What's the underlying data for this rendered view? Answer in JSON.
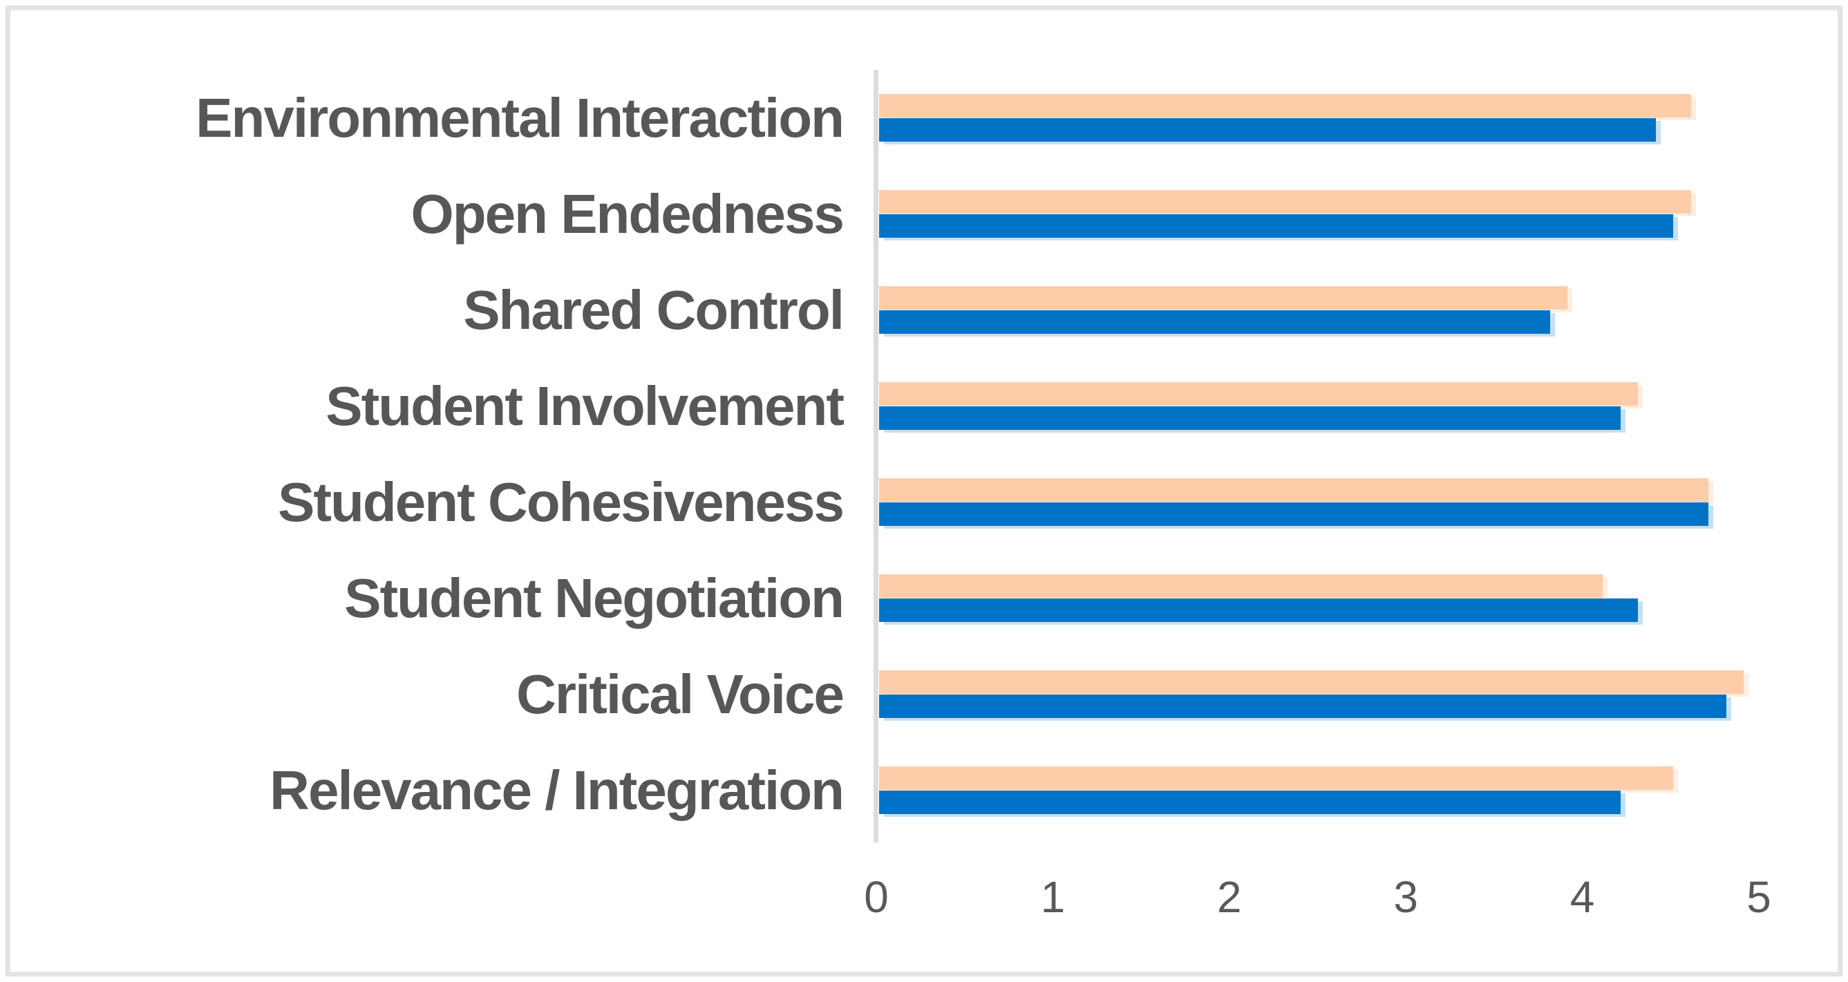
{
  "chart_data": {
    "type": "bar",
    "orientation": "horizontal",
    "title": "",
    "xlabel": "",
    "ylabel": "",
    "categories": [
      "Environmental Interaction",
      "Open Endedness",
      "Shared Control",
      "Student Involvement",
      "Student Cohesiveness",
      "Student Negotiation",
      "Critical Voice",
      "Relevance / Integration"
    ],
    "series": [
      {
        "name": "orange-series",
        "color": "#fdcca9",
        "values": [
          4.6,
          4.6,
          3.9,
          4.3,
          4.7,
          4.1,
          4.9,
          4.5
        ]
      },
      {
        "name": "blue-series",
        "color": "#0173c6",
        "values": [
          4.4,
          4.5,
          3.8,
          4.2,
          4.7,
          4.3,
          4.8,
          4.2
        ]
      }
    ],
    "xlim": [
      0,
      5
    ],
    "x_ticks": [
      "0",
      "1",
      "2",
      "3",
      "4",
      "5"
    ],
    "grid": false,
    "legend_position": "none"
  },
  "colors": {
    "background": "#ffffff",
    "frame_border": "#e3e3e3",
    "axis_line": "#dcdcdc",
    "category_label_text": "#575757",
    "tick_label_text": "#595959"
  }
}
